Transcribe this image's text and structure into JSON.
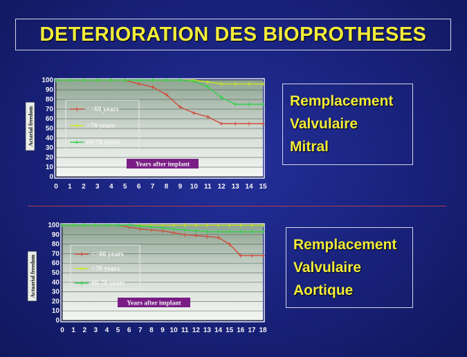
{
  "title": "DETERIORATION DES BIOPROTHESES",
  "colors": {
    "background": "#1a2480",
    "title": "#f2ec3a",
    "plot_top": "#8fa592",
    "plot_bottom": "#f4f6f4",
    "series_le60": "#d04a38",
    "series_gt70": "#c8e820",
    "series_60_70": "#2ed24a"
  },
  "panels": [
    {
      "id": "mitral",
      "labels": [
        "Remplacement",
        "Valvulaire",
        "Mitral"
      ]
    },
    {
      "id": "aortic",
      "labels": [
        "Remplacement",
        "Valvulaire",
        "Aortique"
      ]
    }
  ],
  "chart_data": [
    {
      "type": "line",
      "ylabel": "Actarial freedom",
      "annotation": "Years after implant",
      "ylim": [
        0,
        100
      ],
      "yticks": [
        0,
        10,
        20,
        30,
        40,
        50,
        60,
        70,
        80,
        90,
        100
      ],
      "x": [
        0,
        1,
        2,
        3,
        4,
        5,
        6,
        7,
        8,
        9,
        10,
        11,
        12,
        13,
        14,
        15
      ],
      "grid": true,
      "legend": "upper-left inside plot",
      "series": [
        {
          "name": "<=60 years",
          "color": "#d04a38",
          "values": [
            100,
            100,
            100,
            100,
            100,
            100,
            96,
            93,
            85,
            72,
            66,
            62,
            55,
            55,
            55,
            55
          ]
        },
        {
          "name": ">70 years",
          "color": "#c8e820",
          "values": [
            100,
            100,
            100,
            100,
            100,
            100,
            100,
            100,
            100,
            100,
            100,
            98,
            96,
            96,
            96,
            96
          ]
        },
        {
          "name": "60-70 years",
          "color": "#2ed24a",
          "values": [
            100,
            100,
            100,
            100,
            100,
            100,
            100,
            100,
            100,
            100,
            99,
            93,
            82,
            75,
            75,
            75
          ]
        }
      ]
    },
    {
      "type": "line",
      "ylabel": "Actuarial freedom",
      "annotation": "Years after implant",
      "ylim": [
        0,
        100
      ],
      "yticks": [
        0,
        10,
        20,
        30,
        40,
        50,
        60,
        70,
        80,
        90,
        100
      ],
      "x": [
        0,
        1,
        2,
        3,
        4,
        5,
        6,
        7,
        8,
        9,
        10,
        11,
        12,
        13,
        14,
        15,
        16,
        17,
        18
      ],
      "grid": true,
      "legend": "upper-left inside plot",
      "series": [
        {
          "name": "<=60 years",
          "color": "#d04a38",
          "values": [
            100,
            100,
            100,
            100,
            100,
            100,
            98,
            96,
            95,
            94,
            92,
            90,
            89,
            88,
            87,
            80,
            68,
            68,
            68
          ]
        },
        {
          "name": ">70 years",
          "color": "#c8e820",
          "values": [
            100,
            100,
            100,
            100,
            100,
            100,
            100,
            100,
            100,
            100,
            100,
            100,
            100,
            100,
            100,
            100,
            100,
            100,
            100
          ]
        },
        {
          "name": "60-70 years",
          "color": "#2ed24a",
          "values": [
            100,
            100,
            100,
            100,
            100,
            100,
            100,
            99,
            98,
            97,
            96,
            95,
            94,
            93,
            93,
            93,
            93,
            93,
            93
          ]
        }
      ]
    }
  ]
}
